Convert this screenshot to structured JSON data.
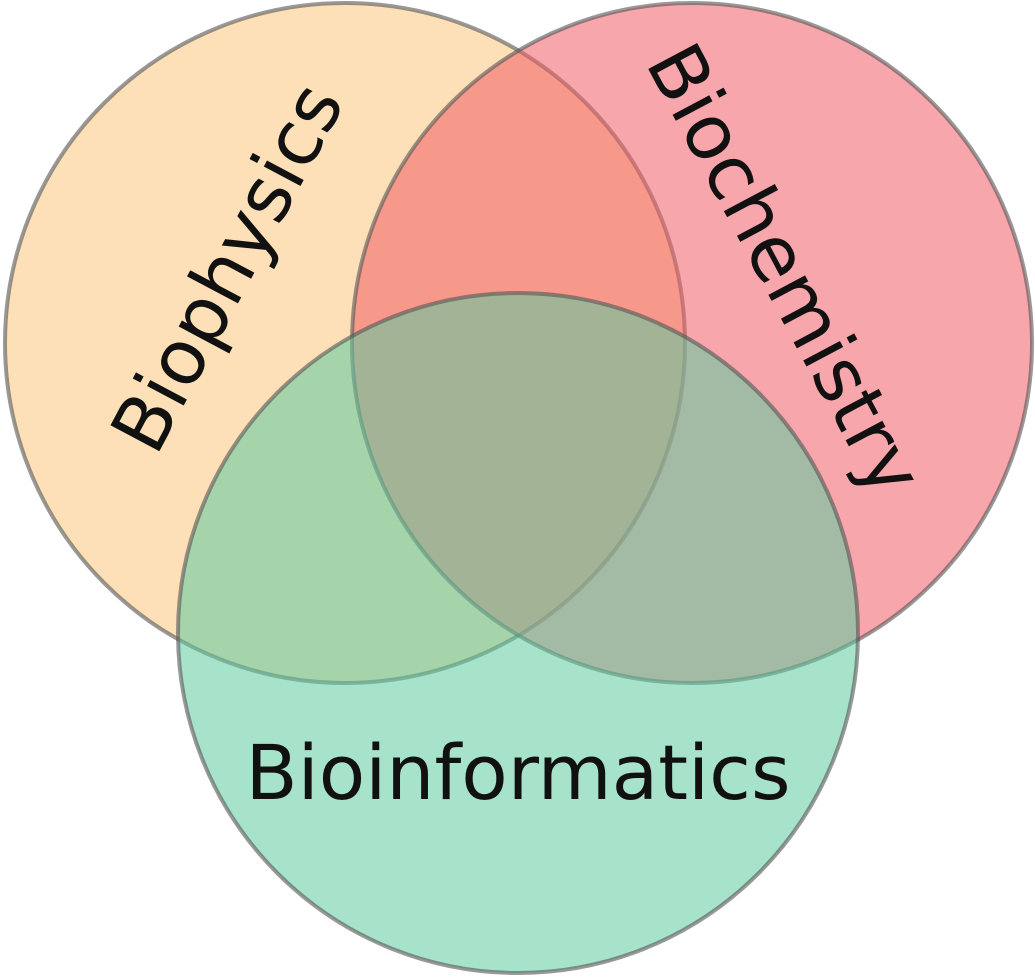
{
  "diagram": {
    "type": "venn-3",
    "sets": [
      {
        "id": "biophysics",
        "label": "Biophysics",
        "color": "#fbc67b"
      },
      {
        "id": "biochemistry",
        "label": "Biochemistry",
        "color": "#f15c66"
      },
      {
        "id": "bioinformatics",
        "label": "Bioinformatics",
        "color": "#5fcaa0"
      }
    ]
  }
}
